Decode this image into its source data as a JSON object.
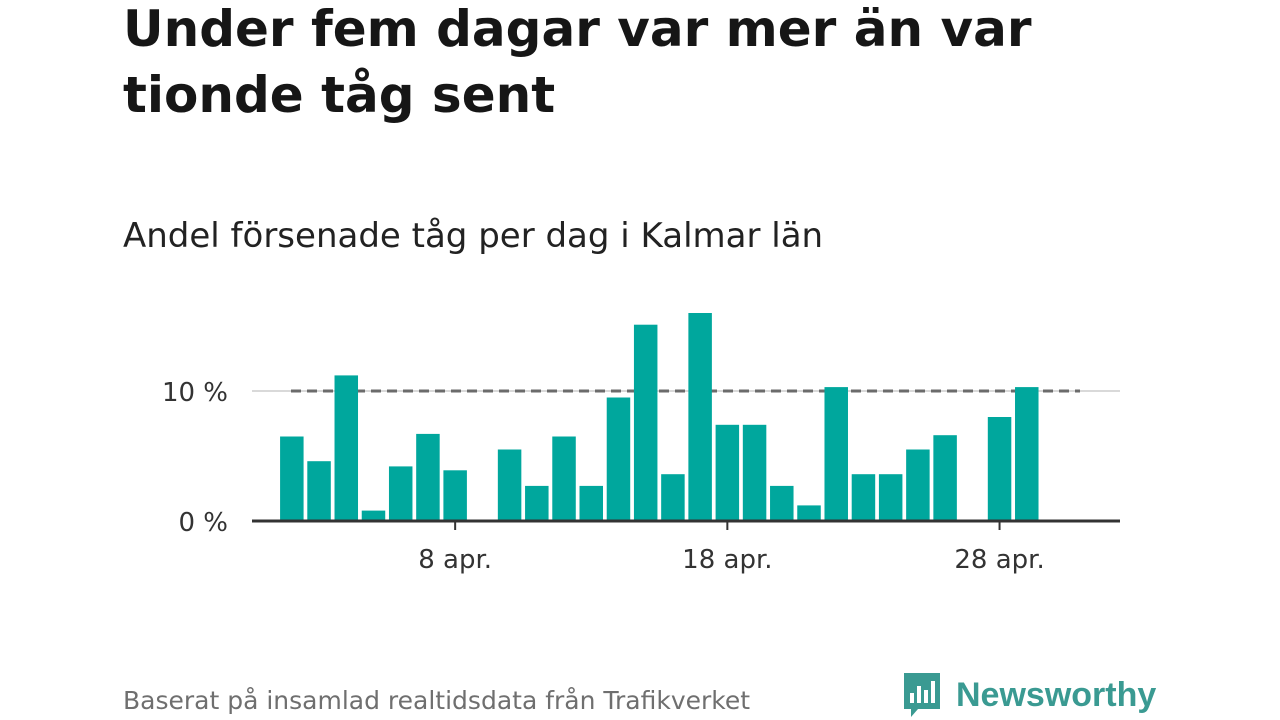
{
  "title": "Under fem dagar var mer än var tionde tåg sent",
  "subtitle": "Andel försenade tåg per dag i Kalmar län",
  "footer": "Baserat på insamlad realtidsdata från Trafikverket",
  "brand": {
    "name": "Newsworthy",
    "logo_icon": "bar-chart-speech-bubble-icon"
  },
  "colors": {
    "bar": "#00a79d",
    "reference_line": "#6b6b6b",
    "axis": "#333333",
    "grid": "#d9d9d9",
    "brand": "#3a9a92"
  },
  "chart_data": {
    "type": "bar",
    "title": "Under fem dagar var mer än var tionde tåg sent",
    "subtitle": "Andel försenade tåg per dag i Kalmar län",
    "x": [
      "2024-04-01",
      "2024-04-02",
      "2024-04-03",
      "2024-04-04",
      "2024-04-05",
      "2024-04-06",
      "2024-04-07",
      "2024-04-08",
      "2024-04-09",
      "2024-04-10",
      "2024-04-11",
      "2024-04-12",
      "2024-04-13",
      "2024-04-14",
      "2024-04-15",
      "2024-04-16",
      "2024-04-17",
      "2024-04-18",
      "2024-04-19",
      "2024-04-20",
      "2024-04-21",
      "2024-04-22",
      "2024-04-23",
      "2024-04-24",
      "2024-04-25",
      "2024-04-26",
      "2024-04-27",
      "2024-04-28",
      "2024-04-29",
      "2024-04-30"
    ],
    "values": [
      null,
      6.5,
      4.6,
      11.2,
      0.8,
      4.2,
      6.7,
      3.9,
      0,
      5.5,
      2.7,
      6.5,
      2.7,
      9.5,
      15.1,
      3.6,
      16.0,
      7.4,
      7.4,
      2.7,
      1.2,
      10.3,
      3.6,
      3.6,
      5.5,
      6.6,
      0,
      8.0,
      10.3,
      null
    ],
    "ylim": [
      0,
      17
    ],
    "yticks": [
      {
        "value": 0,
        "label": "0 %"
      },
      {
        "value": 10,
        "label": "10 %"
      }
    ],
    "xticks": [
      {
        "x": "2024-04-08",
        "label": "8 apr."
      },
      {
        "x": "2024-04-18",
        "label": "18 apr."
      },
      {
        "x": "2024-04-28",
        "label": "28 apr."
      }
    ],
    "reference_line": {
      "value": 10,
      "style": "dashed"
    },
    "grid": true
  }
}
